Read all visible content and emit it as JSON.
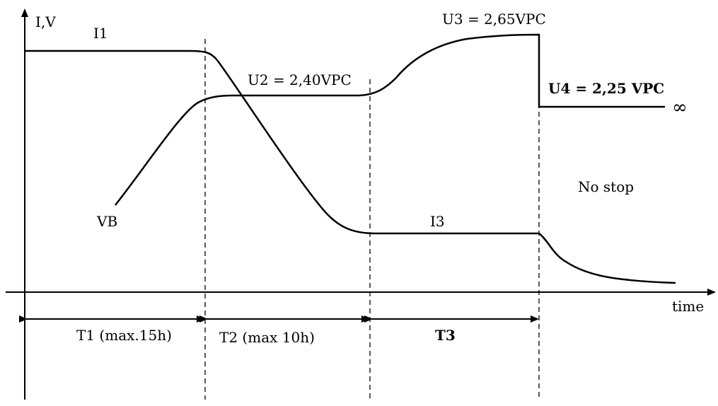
{
  "axes": {
    "y_label": "I,V",
    "x_label": "time"
  },
  "curves": {
    "current_start": "I1",
    "voltage_start": "VB",
    "current_end": "I3"
  },
  "voltage_levels": {
    "u2": "U2 = 2,40VPC",
    "u3": "U3 = 2,65VPC",
    "u4": "U4 = 2,25 VPC",
    "infinity": "∞"
  },
  "phases": {
    "t1": "T1 (max.15h)",
    "t2": "T2 (max 10h)",
    "t3": "T3"
  },
  "note": "No stop"
}
